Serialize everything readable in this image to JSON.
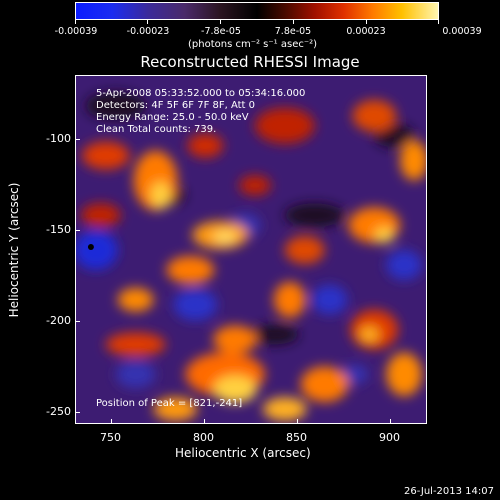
{
  "colorbar": {
    "ticks": [
      "-0.00039",
      "-0.00023",
      "-7.8e-05",
      "7.8e-05",
      "0.00023",
      "0.00039"
    ],
    "units": "(photons cm⁻² s⁻¹ asec⁻²)"
  },
  "title": "Reconstructed RHESSI Image",
  "info": {
    "time_range": "5-Apr-2008 05:33:52.000 to 05:34:16.000",
    "detectors": "Detectors: 4F 5F 6F 7F 8F, Att 0",
    "energy": "Energy Range: 25.0 - 50.0 keV",
    "clean": "Clean    Total counts: 739.",
    "peak": "Position of Peak = [821,-241]"
  },
  "axes": {
    "xlabel": "Heliocentric X (arcsec)",
    "ylabel": "Heliocentric Y (arcsec)",
    "xticks": [
      "750",
      "800",
      "850",
      "900"
    ],
    "yticks": [
      "-100",
      "-150",
      "-200",
      "-250"
    ]
  },
  "footer": {
    "timestamp": "26-Jul-2013 14:07"
  },
  "colors": {
    "background": "#000000",
    "frame": "#ffffff"
  }
}
